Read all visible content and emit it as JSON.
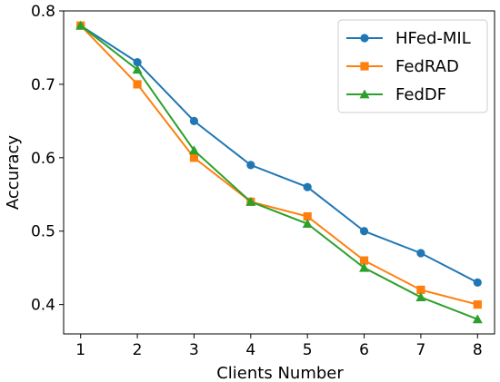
{
  "chart_data": {
    "type": "line",
    "title": "",
    "xlabel": "Clients Number",
    "ylabel": "Accuracy",
    "x": [
      1,
      2,
      3,
      4,
      5,
      6,
      7,
      8
    ],
    "xlim": [
      0.7,
      8.3
    ],
    "ylim": [
      0.36,
      0.8
    ],
    "xticks": [
      "1",
      "2",
      "3",
      "4",
      "5",
      "6",
      "7",
      "8"
    ],
    "yticks": [
      "0.4",
      "0.5",
      "0.6",
      "0.7",
      "0.8"
    ],
    "ytick_values": [
      0.4,
      0.5,
      0.6,
      0.7,
      0.8
    ],
    "grid": false,
    "legend_position": "top-right",
    "series": [
      {
        "name": "HFed-MIL",
        "color": "#1f77b4",
        "marker": "circle",
        "values": [
          0.78,
          0.73,
          0.65,
          0.59,
          0.56,
          0.5,
          0.47,
          0.43
        ]
      },
      {
        "name": "FedRAD",
        "color": "#ff7f0e",
        "marker": "square",
        "values": [
          0.78,
          0.7,
          0.6,
          0.54,
          0.52,
          0.46,
          0.42,
          0.4
        ]
      },
      {
        "name": "FedDF",
        "color": "#2ca02c",
        "marker": "triangle",
        "values": [
          0.78,
          0.72,
          0.61,
          0.54,
          0.51,
          0.45,
          0.41,
          0.38
        ]
      }
    ]
  }
}
